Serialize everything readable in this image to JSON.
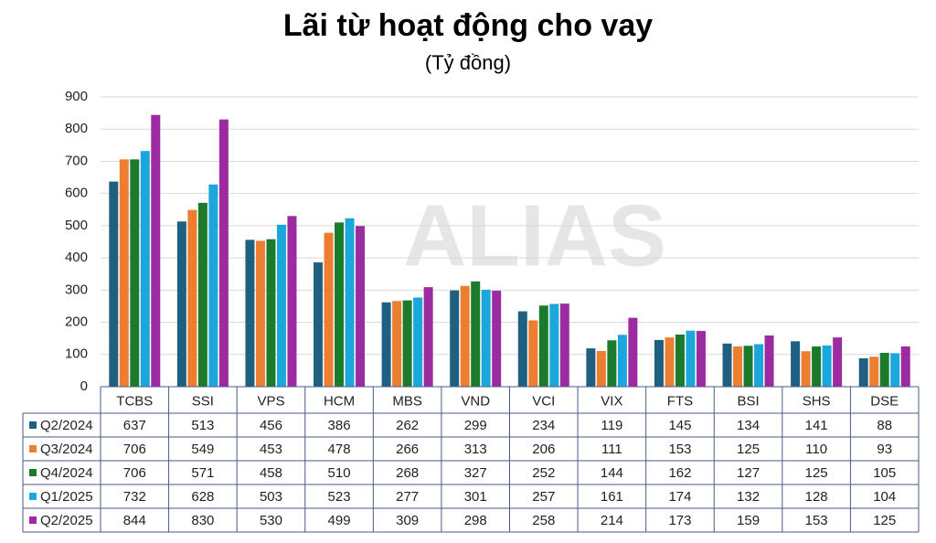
{
  "chart_data": {
    "type": "bar",
    "title": "Lãi từ hoạt động cho vay",
    "subtitle": "(Tỷ đồng)",
    "watermark": "ALIAS",
    "categories": [
      "TCBS",
      "SSI",
      "VPS",
      "HCM",
      "MBS",
      "VND",
      "VCI",
      "VIX",
      "FTS",
      "BSI",
      "SHS",
      "DSE"
    ],
    "series": [
      {
        "name": "Q2/2024",
        "color": "#1f5f7f",
        "values": [
          637,
          513,
          456,
          386,
          262,
          299,
          234,
          119,
          145,
          134,
          141,
          88
        ]
      },
      {
        "name": "Q3/2024",
        "color": "#ed7d31",
        "values": [
          706,
          549,
          453,
          478,
          266,
          313,
          206,
          111,
          153,
          125,
          110,
          93
        ]
      },
      {
        "name": "Q4/2024",
        "color": "#1b7a2b",
        "values": [
          706,
          571,
          458,
          510,
          268,
          327,
          252,
          144,
          162,
          127,
          125,
          105
        ]
      },
      {
        "name": "Q1/2025",
        "color": "#1ba6dc",
        "values": [
          732,
          628,
          503,
          523,
          277,
          301,
          257,
          161,
          174,
          132,
          128,
          104
        ]
      },
      {
        "name": "Q2/2025",
        "color": "#9c2aa0",
        "values": [
          844,
          830,
          530,
          499,
          309,
          298,
          258,
          214,
          173,
          159,
          153,
          125
        ]
      }
    ],
    "ylim": [
      0,
      900
    ],
    "yticks": [
      0,
      100,
      200,
      300,
      400,
      500,
      600,
      700,
      800,
      900
    ],
    "grid": true
  }
}
